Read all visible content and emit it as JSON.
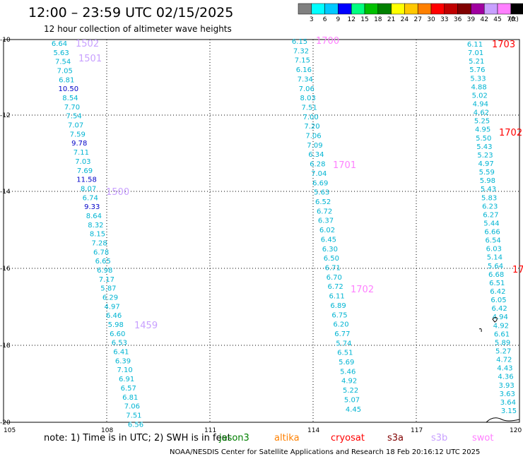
{
  "title": "12:00 – 23:59 UTC 02/15/2025",
  "subtitle": "12 hour collection of altimeter wave heights",
  "note": "note:  1) Time is in UTC; 2) SWH is in feet",
  "footer": "NOAA/NESDIS Center for Satellite Applications and Research     18 Feb 20:16:12 UTC 2025",
  "colorbar": {
    "unit": "(ft)",
    "labels": [
      "3",
      "6",
      "9",
      "12",
      "15",
      "18",
      "21",
      "24",
      "27",
      "30",
      "33",
      "36",
      "39",
      "42",
      "45",
      "70"
    ],
    "colors": [
      "#808080",
      "#00ffff",
      "#00c8ff",
      "#0000ff",
      "#00ff80",
      "#00c000",
      "#008000",
      "#ffff00",
      "#ffc800",
      "#ff8000",
      "#ff0000",
      "#c00000",
      "#800000",
      "#a000a0",
      "#c8a0ff",
      "#ff80ff",
      "#000000"
    ]
  },
  "axes": {
    "lon_ticks": [
      "105",
      "108",
      "111",
      "114",
      "117",
      "120"
    ],
    "lat_ticks": [
      "-10",
      "-12",
      "-14",
      "-16",
      "-18",
      "-20"
    ]
  },
  "satellites": [
    {
      "name": "jason3",
      "color": "#008000"
    },
    {
      "name": "altika",
      "color": "#ff8000"
    },
    {
      "name": "cryosat",
      "color": "#ff0000"
    },
    {
      "name": "s3a",
      "color": "#800000"
    },
    {
      "name": "s3b",
      "color": "#c8a0ff"
    },
    {
      "name": "swot",
      "color": "#ff80ff"
    }
  ],
  "tracks": [
    {
      "values": [
        "6.64",
        "5.63",
        "7.54",
        "7.05",
        "6.81",
        "10.50",
        "8.54",
        "7.70",
        "7.54",
        "7.07",
        "7.59",
        "9.78",
        "7.11",
        "7.03",
        "7.69",
        "11.58",
        "8.07",
        "6.74",
        "9.33",
        "8.64",
        "8.32",
        "8.15",
        "7.28",
        "6.78",
        "6.65",
        "6.98",
        "7.17",
        "5.87",
        "6.29",
        "4.97",
        "6.46",
        "5.98",
        "6.60",
        "6.53",
        "6.41",
        "6.39",
        "7.10",
        "6.91",
        "6.57",
        "6.81",
        "7.06",
        "7.51",
        "6.56"
      ]
    },
    {
      "values": [
        "6.15",
        "7.32",
        "7.15",
        "6.16",
        "7.34",
        "7.06",
        "8.03",
        "7.51",
        "7.00",
        "7.20",
        "7.06",
        "7.09",
        "6.34",
        "6.28",
        "7.04",
        "6.69",
        "5.63",
        "6.52",
        "6.72",
        "6.37",
        "6.02",
        "6.45",
        "6.30",
        "6.50",
        "6.71",
        "6.70",
        "6.72",
        "6.11",
        "6.89",
        "6.75",
        "6.20",
        "6.77",
        "5.74",
        "6.51",
        "5.69",
        "5.46",
        "4.92",
        "5.22",
        "5.07",
        "4.45"
      ]
    },
    {
      "values": [
        "6.11",
        "7.01",
        "5.21",
        "5.76",
        "5.33",
        "4.88",
        "5.02",
        "4.94",
        "4.62",
        "5.25",
        "4.95",
        "5.50",
        "5.43",
        "5.23",
        "4.97",
        "5.59",
        "5.98",
        "5.43",
        "5.83",
        "6.23",
        "6.27",
        "5.44",
        "6.66",
        "6.54",
        "6.03",
        "5.14",
        "5.64",
        "6.68",
        "6.51",
        "6.42",
        "6.05",
        "6.42",
        "4.94",
        "4.92",
        "6.61",
        "5.89",
        "5.27",
        "4.72",
        "4.43",
        "4.36",
        "3.93",
        "3.63",
        "3.64",
        "3.15"
      ]
    }
  ],
  "time_labels": [
    {
      "text": "1502",
      "color": "#c8a0ff"
    },
    {
      "text": "1501",
      "color": "#c8a0ff"
    },
    {
      "text": "1500",
      "color": "#c8a0ff"
    },
    {
      "text": "1459",
      "color": "#c8a0ff"
    },
    {
      "text": "1700",
      "color": "#ff80ff"
    },
    {
      "text": "1701",
      "color": "#ff80ff"
    },
    {
      "text": "1702",
      "color": "#ff80ff"
    },
    {
      "text": "1703",
      "color": "#ff0000"
    },
    {
      "text": "1702",
      "color": "#ff0000"
    },
    {
      "text": "17",
      "color": "#ff0000"
    }
  ]
}
